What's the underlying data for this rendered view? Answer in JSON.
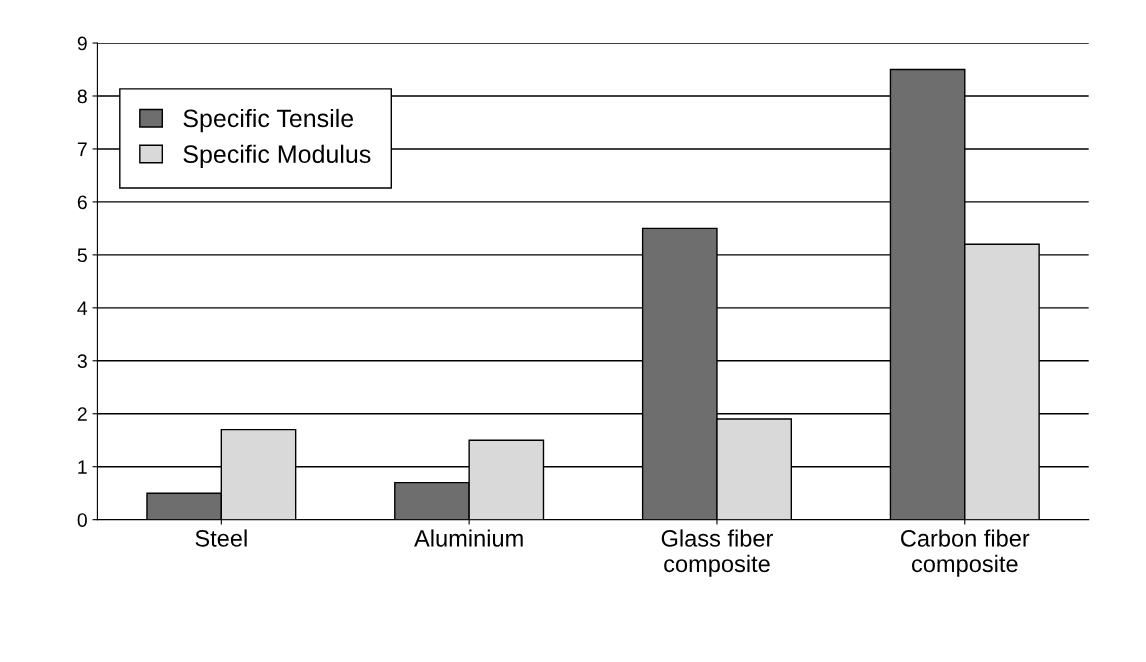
{
  "chart_data": {
    "type": "bar",
    "categories": [
      "Steel",
      "Aluminium",
      "Glass fiber\ncomposite",
      "Carbon fiber\ncomposite"
    ],
    "series": [
      {
        "name": "Specific Tensile",
        "color": "#6e6e6e",
        "values": [
          0.5,
          0.7,
          5.5,
          8.5
        ]
      },
      {
        "name": "Specific Modulus",
        "color": "#d9d9d9",
        "values": [
          1.7,
          1.5,
          1.9,
          5.2
        ]
      }
    ],
    "ylim": [
      0,
      9
    ],
    "yticks": [
      0,
      1,
      2,
      3,
      4,
      5,
      6,
      7,
      8,
      9
    ],
    "grid": "y",
    "legend": "top left"
  }
}
